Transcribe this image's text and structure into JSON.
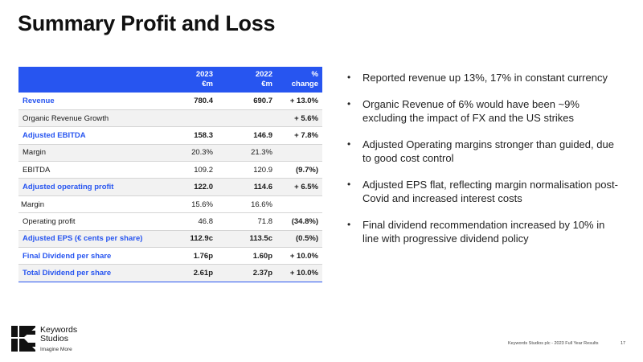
{
  "title": "Summary Profit and Loss",
  "table": {
    "headers": [
      "",
      "2023\n€m",
      "2022\n€m",
      "%\nchange"
    ],
    "header_2023": {
      "line1": "2023",
      "line2": "€m"
    },
    "header_2022": {
      "line1": "2022",
      "line2": "€m"
    },
    "header_change": {
      "line1": "%",
      "line2": "change"
    },
    "rows": [
      {
        "label": "Revenue",
        "v2023": "780.4",
        "v2022": "690.7",
        "change": "+ 13.0%"
      },
      {
        "label": "Organic Revenue Growth",
        "v2023": "",
        "v2022": "",
        "change": "+ 5.6%"
      },
      {
        "label": "Adjusted EBITDA",
        "v2023": "158.3",
        "v2022": "146.9",
        "change": "+ 7.8%"
      },
      {
        "label": "Margin",
        "v2023": "20.3%",
        "v2022": "21.3%",
        "change": ""
      },
      {
        "label": "EBITDA",
        "v2023": "109.2",
        "v2022": "120.9",
        "change": "(9.7%)"
      },
      {
        "label": "Adjusted operating profit",
        "v2023": "122.0",
        "v2022": "114.6",
        "change": "+ 6.5%"
      },
      {
        "label": "Margin",
        "v2023": "15.6%",
        "v2022": "16.6%",
        "change": ""
      },
      {
        "label": "Operating profit",
        "v2023": "46.8",
        "v2022": "71.8",
        "change": "(34.8%)"
      },
      {
        "label": "Adjusted EPS (€ cents per share)",
        "v2023": "112.9c",
        "v2022": "113.5c",
        "change": "(0.5%)"
      },
      {
        "label": "Final Dividend per share",
        "v2023": "1.76p",
        "v2022": "1.60p",
        "change": "+ 10.0%"
      },
      {
        "label": "Total Dividend per share",
        "v2023": "2.61p",
        "v2022": "2.37p",
        "change": "+ 10.0%"
      }
    ]
  },
  "bullets": [
    "Reported revenue up 13%, 17% in constant currency",
    "Organic Revenue of 6% would have been ~9% excluding the impact of FX and the US strikes",
    "Adjusted Operating margins stronger than guided, due to good cost control",
    "Adjusted EPS flat, reflecting margin normalisation post-Covid and increased interest costs",
    "Final dividend recommendation increased by 10% in line with progressive dividend policy"
  ],
  "bullet_glyph": "•",
  "logo": {
    "name_line1": "Keywords",
    "name_line2": "Studios",
    "tagline": "Imagine More"
  },
  "footer": {
    "text": "Keywords Studios plc - 2023 Full Year Results",
    "page": "17"
  },
  "colors": {
    "accent": "#2755f0",
    "shade": "#f2f2f2"
  }
}
